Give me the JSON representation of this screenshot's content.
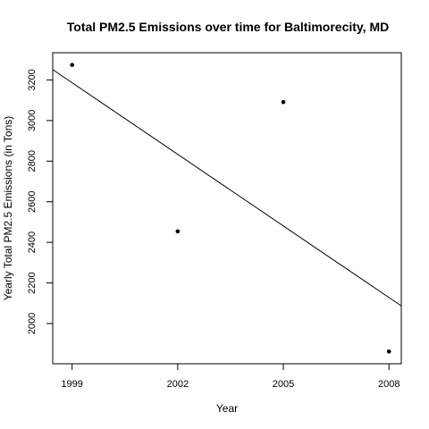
{
  "chart_data": {
    "type": "scatter",
    "title": "Total PM2.5 Emissions over time for Baltimorecity, MD",
    "xlabel": "Year",
    "ylabel": "Yearly Total PM2.5 Emissions (in Tons)",
    "x": [
      1999,
      2002,
      2005,
      2008
    ],
    "series": [
      {
        "values": [
          3274,
          2454,
          3091,
          1862
        ]
      }
    ],
    "trend_line": {
      "type": "linear-fit",
      "from": [
        1998.45,
        3251
      ],
      "to": [
        2008.35,
        2087
      ]
    },
    "xlim": [
      1998.45,
      2008.35
    ],
    "ylim": [
      1802,
      3334
    ],
    "xticks": [
      1999,
      2002,
      2005,
      2008
    ],
    "yticks": [
      2000,
      2200,
      2400,
      2600,
      2800,
      3000,
      3200
    ],
    "grid": false,
    "legend": "none"
  }
}
